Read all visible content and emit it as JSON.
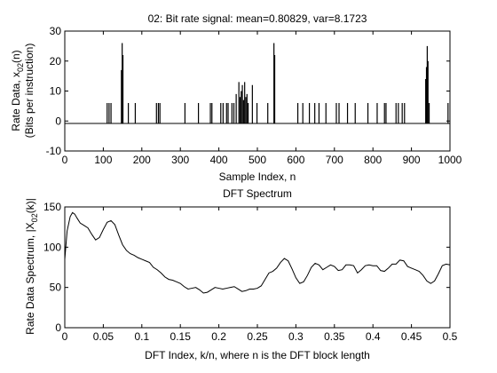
{
  "chart_data": [
    {
      "type": "line",
      "title": "02: Bit rate signal: mean=0.80829, var=8.1723",
      "xlabel": "Sample Index, n",
      "ylabel_line1_pre": "Rate Data, x",
      "ylabel_line1_sub": "02",
      "ylabel_line1_post": "(n)",
      "ylabel_line2": "(Bits per instruction)",
      "xlim": [
        0,
        1000
      ],
      "ylim": [
        -10,
        30
      ],
      "xticks": [
        0,
        100,
        200,
        300,
        400,
        500,
        600,
        700,
        800,
        900,
        1000
      ],
      "yticks": [
        -10,
        0,
        10,
        20,
        30
      ],
      "baseline": -0.8,
      "grid": false,
      "spikes": [
        {
          "x": 110,
          "y": 6
        },
        {
          "x": 115,
          "y": 6
        },
        {
          "x": 120,
          "y": 6
        },
        {
          "x": 147,
          "y": 17
        },
        {
          "x": 149,
          "y": 26
        },
        {
          "x": 151,
          "y": 22
        },
        {
          "x": 165,
          "y": 6
        },
        {
          "x": 183,
          "y": 6
        },
        {
          "x": 238,
          "y": 6
        },
        {
          "x": 243,
          "y": 6
        },
        {
          "x": 247,
          "y": 6
        },
        {
          "x": 312,
          "y": 6
        },
        {
          "x": 347,
          "y": 6
        },
        {
          "x": 378,
          "y": 6
        },
        {
          "x": 382,
          "y": 6
        },
        {
          "x": 405,
          "y": 6
        },
        {
          "x": 411,
          "y": 6
        },
        {
          "x": 420,
          "y": 6
        },
        {
          "x": 424,
          "y": 6
        },
        {
          "x": 434,
          "y": 6
        },
        {
          "x": 439,
          "y": 6
        },
        {
          "x": 445,
          "y": 9
        },
        {
          "x": 452,
          "y": 13
        },
        {
          "x": 455,
          "y": 8
        },
        {
          "x": 458,
          "y": 10
        },
        {
          "x": 461,
          "y": 12
        },
        {
          "x": 464,
          "y": 7
        },
        {
          "x": 467,
          "y": 13
        },
        {
          "x": 470,
          "y": 8
        },
        {
          "x": 473,
          "y": 9
        },
        {
          "x": 476,
          "y": 6
        },
        {
          "x": 487,
          "y": 12
        },
        {
          "x": 499,
          "y": 6
        },
        {
          "x": 527,
          "y": 6
        },
        {
          "x": 543,
          "y": 26
        },
        {
          "x": 545,
          "y": 22
        },
        {
          "x": 605,
          "y": 6
        },
        {
          "x": 618,
          "y": 6
        },
        {
          "x": 635,
          "y": 6
        },
        {
          "x": 649,
          "y": 6
        },
        {
          "x": 660,
          "y": 6
        },
        {
          "x": 678,
          "y": 6
        },
        {
          "x": 705,
          "y": 6
        },
        {
          "x": 712,
          "y": 6
        },
        {
          "x": 734,
          "y": 6
        },
        {
          "x": 754,
          "y": 6
        },
        {
          "x": 787,
          "y": 6
        },
        {
          "x": 811,
          "y": 6
        },
        {
          "x": 830,
          "y": 6
        },
        {
          "x": 834,
          "y": 6
        },
        {
          "x": 860,
          "y": 6
        },
        {
          "x": 866,
          "y": 6
        },
        {
          "x": 876,
          "y": 6
        },
        {
          "x": 882,
          "y": 6
        },
        {
          "x": 937,
          "y": 14
        },
        {
          "x": 939,
          "y": 18
        },
        {
          "x": 941,
          "y": 25
        },
        {
          "x": 943,
          "y": 20
        },
        {
          "x": 946,
          "y": 6
        },
        {
          "x": 995,
          "y": 6
        }
      ]
    },
    {
      "type": "line",
      "title": "DFT Spectrum",
      "xlabel": "DFT Index, k/n, where n is the DFT block length",
      "ylabel_pre": "Rate Data Spectrum, |X",
      "ylabel_sub": "02",
      "ylabel_post": "(k)|",
      "xlim": [
        0,
        0.5
      ],
      "ylim": [
        0,
        150
      ],
      "xticks": [
        0,
        0.05,
        0.1,
        0.15,
        0.2,
        0.25,
        0.3,
        0.35,
        0.4,
        0.45,
        0.5
      ],
      "xtick_labels": [
        "0",
        "0.05",
        "0.1",
        "0.15",
        "0.2",
        "0.25",
        "0.3",
        "0.35",
        "0.4",
        "0.45",
        "0.5"
      ],
      "yticks": [
        0,
        50,
        100,
        150
      ],
      "grid": false,
      "x": [
        0,
        0.003,
        0.007,
        0.01,
        0.013,
        0.016,
        0.02,
        0.025,
        0.03,
        0.035,
        0.04,
        0.045,
        0.05,
        0.055,
        0.06,
        0.065,
        0.07,
        0.075,
        0.08,
        0.085,
        0.09,
        0.095,
        0.1,
        0.105,
        0.11,
        0.115,
        0.12,
        0.125,
        0.13,
        0.135,
        0.14,
        0.145,
        0.15,
        0.155,
        0.16,
        0.165,
        0.17,
        0.175,
        0.18,
        0.185,
        0.19,
        0.195,
        0.2,
        0.205,
        0.21,
        0.215,
        0.22,
        0.225,
        0.23,
        0.235,
        0.24,
        0.245,
        0.25,
        0.255,
        0.26,
        0.265,
        0.27,
        0.275,
        0.28,
        0.285,
        0.29,
        0.295,
        0.3,
        0.305,
        0.31,
        0.315,
        0.32,
        0.325,
        0.33,
        0.335,
        0.34,
        0.345,
        0.35,
        0.355,
        0.36,
        0.365,
        0.37,
        0.375,
        0.38,
        0.385,
        0.39,
        0.395,
        0.4,
        0.405,
        0.41,
        0.415,
        0.42,
        0.425,
        0.43,
        0.435,
        0.44,
        0.445,
        0.45,
        0.455,
        0.46,
        0.465,
        0.47,
        0.475,
        0.48,
        0.485,
        0.49,
        0.495,
        0.5
      ],
      "y": [
        85,
        120,
        138,
        143,
        141,
        136,
        130,
        127,
        124,
        116,
        109,
        112,
        122,
        131,
        133,
        128,
        115,
        103,
        96,
        92,
        90,
        87,
        85,
        83,
        81,
        75,
        72,
        68,
        63,
        60,
        59,
        57,
        55,
        51,
        48,
        49,
        50,
        47,
        43,
        44,
        47,
        50,
        49,
        48,
        49,
        50,
        51,
        48,
        45,
        46,
        48,
        48,
        49,
        52,
        60,
        68,
        70,
        74,
        81,
        86,
        83,
        73,
        62,
        55,
        57,
        65,
        75,
        80,
        78,
        72,
        75,
        78,
        76,
        71,
        72,
        78,
        78,
        77,
        68,
        72,
        77,
        78,
        77,
        77,
        71,
        70,
        74,
        79,
        79,
        84,
        83,
        76,
        74,
        72,
        70,
        65,
        58,
        55,
        58,
        67,
        77,
        79,
        78
      ]
    }
  ]
}
